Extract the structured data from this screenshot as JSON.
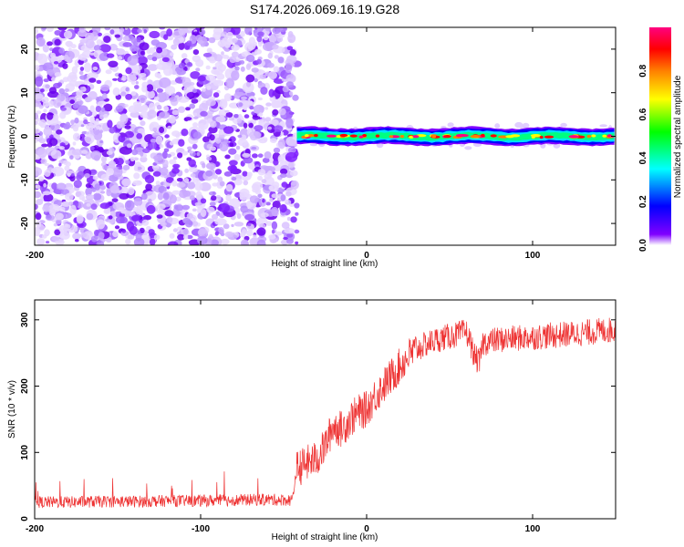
{
  "title": "S174.2026.069.16.19.G28",
  "chart_data": [
    {
      "type": "heatmap",
      "title": "S174.2026.069.16.19.G28",
      "xlabel": "Height of straight line (km)",
      "ylabel": "Frequency (Hz)",
      "xlim": [
        -200,
        150
      ],
      "ylim": [
        -25,
        25
      ],
      "xticks": [
        -200,
        -100,
        0,
        100
      ],
      "xtick_labels": [
        "-200",
        "-100",
        "0",
        "100"
      ],
      "yticks": [
        -20,
        -10,
        0,
        10,
        20
      ],
      "ytick_labels": [
        "-20",
        "-10",
        "0",
        "10",
        "20"
      ],
      "noise_region_km": [
        -200,
        -42
      ],
      "signal_start_km": -42,
      "signal_frequency_hz": 0,
      "signal_band_halfwidth_hz": 1.5,
      "colorbar": {
        "label": "Normalized spectral amplitude",
        "range": [
          0.0,
          1.0
        ],
        "ticks": [
          0.0,
          0.2,
          0.4,
          0.6,
          0.8
        ],
        "tick_labels": [
          "0.0",
          "0.2",
          "0.4",
          "0.6",
          "0.8"
        ],
        "stops": [
          "#ffffff",
          "#8000ff",
          "#0000ff",
          "#00ffff",
          "#00ff00",
          "#ffff00",
          "#ff8000",
          "#ff0000",
          "#ff0080"
        ]
      }
    },
    {
      "type": "line",
      "xlabel": "Height of straight line (km)",
      "ylabel": "SNR (10 * v/v)",
      "xlim": [
        -200,
        150
      ],
      "ylim": [
        0,
        330
      ],
      "xticks": [
        -200,
        -100,
        0,
        100
      ],
      "xtick_labels": [
        "-200",
        "-100",
        "0",
        "100"
      ],
      "yticks": [
        0,
        100,
        200,
        300
      ],
      "ytick_labels": [
        "0",
        "100",
        "200",
        "300"
      ],
      "color": "#ee3333",
      "series": [
        {
          "name": "SNR",
          "x": [
            -200,
            -180,
            -160,
            -140,
            -120,
            -100,
            -80,
            -60,
            -45,
            -42,
            -35,
            -30,
            -25,
            -20,
            -15,
            -10,
            -5,
            0,
            5,
            10,
            15,
            20,
            25,
            30,
            35,
            40,
            45,
            50,
            55,
            60,
            62,
            65,
            68,
            70,
            75,
            80,
            90,
            100,
            110,
            120,
            130,
            140,
            150
          ],
          "values": [
            25,
            25,
            26,
            26,
            27,
            27,
            28,
            29,
            28,
            75,
            85,
            90,
            110,
            140,
            135,
            150,
            160,
            165,
            185,
            200,
            215,
            230,
            245,
            255,
            262,
            268,
            272,
            275,
            278,
            282,
            270,
            245,
            235,
            265,
            268,
            270,
            272,
            274,
            276,
            278,
            280,
            283,
            285
          ]
        }
      ]
    }
  ]
}
